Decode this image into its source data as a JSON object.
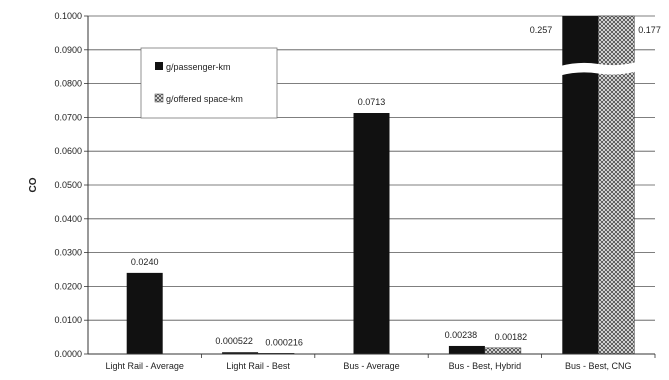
{
  "chart_data": {
    "type": "bar",
    "title": "",
    "xlabel": "",
    "ylabel": "CO",
    "ylim": [
      0,
      0.1
    ],
    "yticks": [
      "0.0000",
      "0.0100",
      "0.0200",
      "0.0300",
      "0.0400",
      "0.0500",
      "0.0600",
      "0.0700",
      "0.0800",
      "0.0900",
      "0.1000"
    ],
    "grid": true,
    "legend_position": "top-left",
    "categories": [
      "Light Rail - Average",
      "Light Rail - Best",
      "Bus - Average",
      "Bus - Best, Hybrid",
      "Bus - Best, CNG"
    ],
    "series": [
      {
        "name": "g/passenger-km",
        "values": [
          0.024,
          0.000522,
          0.0713,
          0.00238,
          0.257
        ],
        "labels": [
          "0.0240",
          "0.000522",
          "0.0713",
          "0.00238",
          "0.257"
        ],
        "color": "#111111",
        "pattern": "solid"
      },
      {
        "name": "g/offered space-km",
        "values": [
          null,
          0.000216,
          null,
          0.00182,
          0.177
        ],
        "labels": [
          "",
          "0.000216",
          "",
          "0.00182",
          "0.177"
        ],
        "color": "#666666",
        "pattern": "crosshatch"
      }
    ],
    "axis_break": {
      "category_index": 4,
      "between": [
        0.083,
        0.0858
      ]
    }
  }
}
